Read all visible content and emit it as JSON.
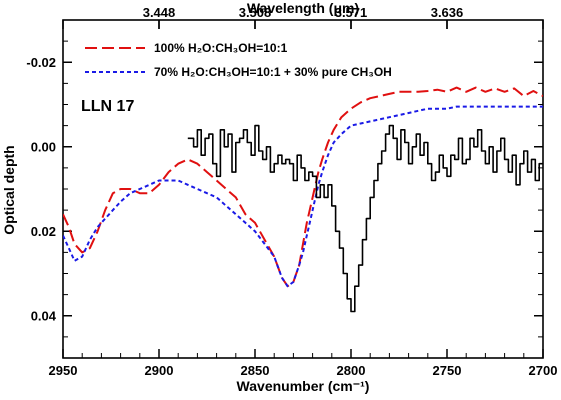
{
  "chart_data": {
    "type": "line",
    "xlabel": "Wavenumber (cm⁻¹)",
    "ylabel": "Optical depth",
    "top_axis_label": "Wavelength (μm)",
    "top_tick_labels": [
      "3.448",
      "3.508",
      "3.571",
      "3.636"
    ],
    "top_tick_wavenumbers": [
      2900,
      2850,
      2800,
      2750
    ],
    "xlim": [
      2950,
      2700
    ],
    "ylim": [
      0.05,
      -0.03
    ],
    "x_tick_labels": [
      "2950",
      "2900",
      "2850",
      "2800",
      "2750",
      "2700"
    ],
    "x_tick_values": [
      2950,
      2900,
      2850,
      2800,
      2750,
      2700
    ],
    "y_tick_labels": [
      "-0.02",
      "0.00",
      "0.02",
      "0.04"
    ],
    "y_tick_values": [
      -0.02,
      0.0,
      0.02,
      0.04
    ],
    "annotation": "LLN 17",
    "series": [
      {
        "name": "",
        "color": "#000000",
        "style": "step",
        "x": [
          2885,
          2882,
          2880,
          2878,
          2876,
          2874,
          2872,
          2870,
          2868,
          2866,
          2864,
          2862,
          2860,
          2858,
          2856,
          2854,
          2852,
          2850,
          2848,
          2846,
          2844,
          2842,
          2840,
          2838,
          2836,
          2834,
          2832,
          2830,
          2828,
          2826,
          2824,
          2822,
          2820,
          2818,
          2816,
          2814,
          2812,
          2810,
          2808,
          2806,
          2804,
          2802,
          2800,
          2798,
          2796,
          2794,
          2792,
          2790,
          2788,
          2786,
          2784,
          2782,
          2780,
          2778,
          2776,
          2774,
          2772,
          2770,
          2768,
          2766,
          2764,
          2762,
          2760,
          2758,
          2756,
          2754,
          2752,
          2750,
          2748,
          2746,
          2744,
          2742,
          2740,
          2738,
          2736,
          2734,
          2732,
          2730,
          2728,
          2726,
          2724,
          2722,
          2720,
          2718,
          2716,
          2714,
          2712,
          2710,
          2708,
          2706,
          2704,
          2702
        ],
        "y": [
          -0.002,
          0.0,
          -0.004,
          0.002,
          -0.002,
          -0.003,
          0.004,
          0.007,
          -0.004,
          0.0,
          -0.003,
          0.006,
          -0.001,
          -0.002,
          -0.004,
          -0.001,
          0.002,
          -0.005,
          0.001,
          0.003,
          0.0,
          0.006,
          0.004,
          0.002,
          0.004,
          0.003,
          0.004,
          0.008,
          0.002,
          0.005,
          0.008,
          0.006,
          0.007,
          0.012,
          0.009,
          0.012,
          0.009,
          0.014,
          0.02,
          0.024,
          0.03,
          0.036,
          0.039,
          0.033,
          0.028,
          0.022,
          0.017,
          0.012,
          0.008,
          0.004,
          0.001,
          -0.003,
          -0.005,
          -0.002,
          0.003,
          -0.004,
          -0.001,
          0.004,
          0.0,
          -0.003,
          0.002,
          -0.001,
          0.004,
          0.008,
          0.006,
          0.002,
          0.005,
          0.007,
          0.002,
          0.003,
          -0.002,
          0.004,
          0.003,
          -0.002,
          0.0,
          -0.004,
          0.001,
          0.004,
          0.0,
          0.006,
          0.001,
          -0.002,
          0.003,
          0.006,
          0.002,
          0.009,
          0.004,
          0.001,
          0.006,
          0.003,
          0.008,
          0.004
        ]
      },
      {
        "name": "100% H₂O:CH₃OH=10:1",
        "color": "#e01010",
        "style": "long-dash",
        "x": [
          2950,
          2947,
          2944,
          2940,
          2936,
          2932,
          2928,
          2924,
          2920,
          2915,
          2910,
          2905,
          2900,
          2895,
          2890,
          2885,
          2880,
          2875,
          2870,
          2865,
          2860,
          2855,
          2850,
          2845,
          2840,
          2836,
          2833,
          2830,
          2827,
          2825,
          2823,
          2821,
          2819,
          2817,
          2815,
          2812,
          2809,
          2805,
          2800,
          2795,
          2790,
          2785,
          2780,
          2775,
          2770,
          2765,
          2760,
          2755,
          2750,
          2745,
          2740,
          2735,
          2730,
          2725,
          2720,
          2715,
          2710,
          2705,
          2700
        ],
        "y": [
          0.016,
          0.019,
          0.023,
          0.025,
          0.024,
          0.02,
          0.015,
          0.011,
          0.01,
          0.01,
          0.011,
          0.011,
          0.009,
          0.006,
          0.004,
          0.003,
          0.004,
          0.006,
          0.008,
          0.01,
          0.012,
          0.016,
          0.018,
          0.022,
          0.026,
          0.031,
          0.033,
          0.032,
          0.028,
          0.023,
          0.018,
          0.014,
          0.01,
          0.006,
          0.003,
          -0.001,
          -0.004,
          -0.007,
          -0.009,
          -0.0105,
          -0.0115,
          -0.012,
          -0.0125,
          -0.013,
          -0.013,
          -0.013,
          -0.0132,
          -0.0135,
          -0.013,
          -0.014,
          -0.013,
          -0.014,
          -0.013,
          -0.0138,
          -0.013,
          -0.0138,
          -0.012,
          -0.0132,
          -0.012
        ]
      },
      {
        "name": "70% H₂O:CH₃OH=10:1 + 30% pure CH₃OH",
        "color": "#1a1ae6",
        "style": "short-dash",
        "x": [
          2950,
          2947,
          2944,
          2940,
          2936,
          2932,
          2928,
          2924,
          2920,
          2915,
          2910,
          2905,
          2900,
          2895,
          2890,
          2885,
          2880,
          2875,
          2870,
          2865,
          2860,
          2855,
          2850,
          2845,
          2840,
          2836,
          2833,
          2830,
          2827,
          2825,
          2823,
          2821,
          2819,
          2817,
          2815,
          2812,
          2809,
          2805,
          2800,
          2795,
          2790,
          2785,
          2780,
          2775,
          2770,
          2765,
          2760,
          2755,
          2750,
          2745,
          2740,
          2735,
          2730,
          2725,
          2720,
          2715,
          2710,
          2705,
          2700
        ],
        "y": [
          0.021,
          0.024,
          0.027,
          0.026,
          0.022,
          0.019,
          0.017,
          0.015,
          0.013,
          0.011,
          0.01,
          0.009,
          0.008,
          0.008,
          0.008,
          0.009,
          0.01,
          0.011,
          0.012,
          0.014,
          0.016,
          0.018,
          0.02,
          0.023,
          0.026,
          0.031,
          0.033,
          0.032,
          0.028,
          0.025,
          0.021,
          0.017,
          0.013,
          0.009,
          0.006,
          0.002,
          -0.001,
          -0.003,
          -0.005,
          -0.0055,
          -0.006,
          -0.0065,
          -0.007,
          -0.0075,
          -0.008,
          -0.0085,
          -0.009,
          -0.009,
          -0.009,
          -0.0095,
          -0.0095,
          -0.0095,
          -0.0095,
          -0.0095,
          -0.0095,
          -0.0095,
          -0.0095,
          -0.0095,
          -0.0095
        ]
      }
    ],
    "legend_position": "top-left"
  }
}
